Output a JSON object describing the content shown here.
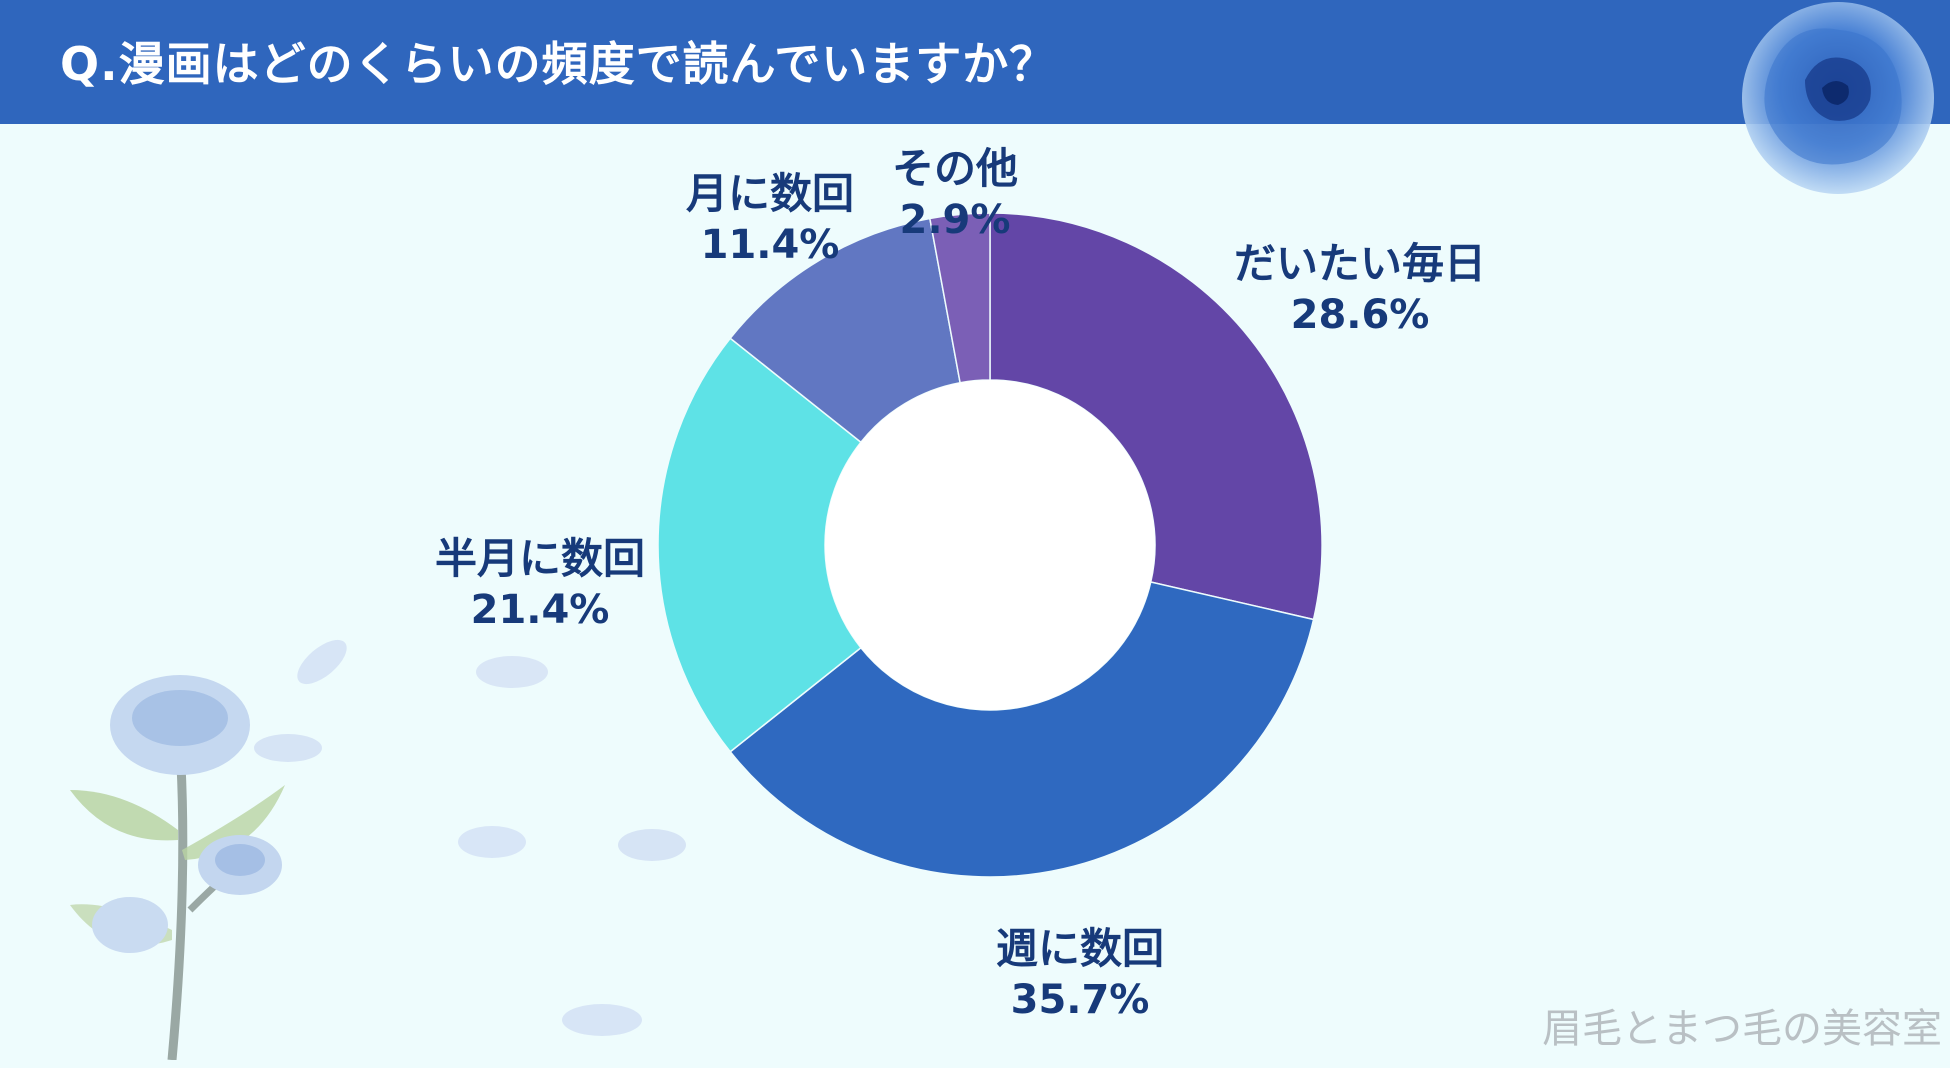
{
  "title": "Q.漫画はどのくらいの頻度で読んでいますか？",
  "watermark": "眉毛とまつ毛の美容室",
  "colors": {
    "header": "#2f66bd",
    "background": "#eefcfd",
    "label_text": "#173a7a"
  },
  "chart_data": {
    "type": "pie",
    "categories": [
      "だいたい毎日",
      "週に数回",
      "半月に数回",
      "月に数回",
      "その他"
    ],
    "values": [
      28.6,
      35.7,
      21.4,
      11.4,
      2.9
    ],
    "labels": [
      "28.6%",
      "35.7%",
      "21.4%",
      "11.4%",
      "2.9%"
    ],
    "colors": [
      "#6346a7",
      "#2f69c0",
      "#5ee2e6",
      "#6177c2",
      "#7b5fb6"
    ],
    "title": "Q.漫画はどのくらいの頻度で読んでいますか？",
    "legend": "none"
  }
}
